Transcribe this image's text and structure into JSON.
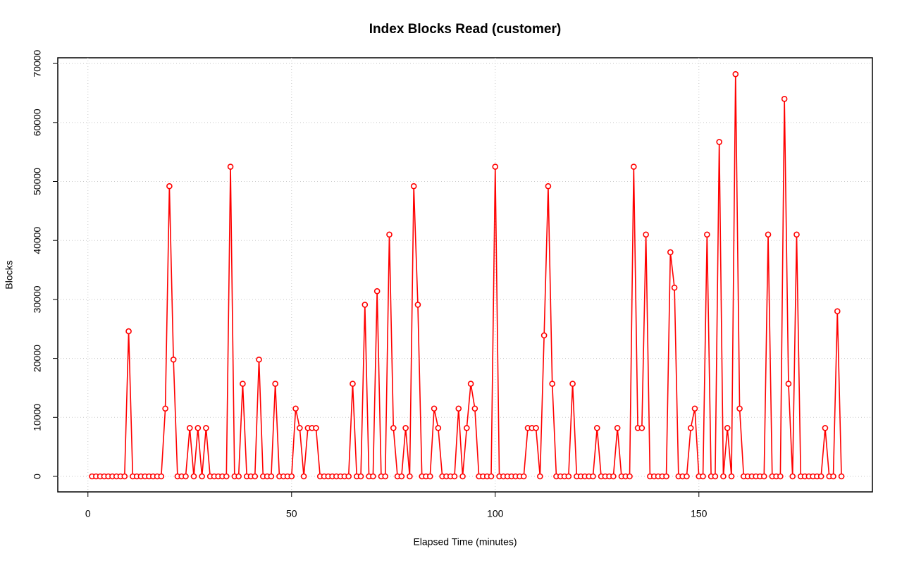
{
  "chart_data": {
    "type": "line",
    "title": "Index Blocks Read (customer)",
    "x_label": "Elapsed Time (minutes)",
    "y_label": "Blocks",
    "x": [
      1,
      2,
      3,
      4,
      5,
      6,
      7,
      8,
      9,
      10,
      11,
      12,
      13,
      14,
      15,
      16,
      17,
      18,
      19,
      20,
      21,
      22,
      23,
      24,
      25,
      26,
      27,
      28,
      29,
      30,
      31,
      32,
      33,
      34,
      35,
      36,
      37,
      38,
      39,
      40,
      41,
      42,
      43,
      44,
      45,
      46,
      47,
      48,
      49,
      50,
      51,
      52,
      53,
      54,
      55,
      56,
      57,
      58,
      59,
      60,
      61,
      62,
      63,
      64,
      65,
      66,
      67,
      68,
      69,
      70,
      71,
      72,
      73,
      74,
      75,
      76,
      77,
      78,
      79,
      80,
      81,
      82,
      83,
      84,
      85,
      86,
      87,
      88,
      89,
      90,
      91,
      92,
      93,
      94,
      95,
      96,
      97,
      98,
      99,
      100,
      101,
      102,
      103,
      104,
      105,
      106,
      107,
      108,
      109,
      110,
      111,
      112,
      113,
      114,
      115,
      116,
      117,
      118,
      119,
      120,
      121,
      122,
      123,
      124,
      125,
      126,
      127,
      128,
      129,
      130,
      131,
      132,
      133,
      134,
      135,
      136,
      137,
      138,
      139,
      140,
      141,
      142,
      143,
      144,
      145,
      146,
      147,
      148,
      149,
      150,
      151,
      152,
      153,
      154,
      155,
      156,
      157,
      158,
      159,
      160,
      161,
      162,
      163,
      164,
      165,
      166,
      167,
      168,
      169,
      170,
      171,
      172,
      173,
      174,
      175,
      176,
      177,
      178,
      179,
      180,
      181,
      182,
      183,
      184,
      185
    ],
    "series": [
      {
        "color": "#ff0000",
        "values": [
          0,
          0,
          0,
          0,
          0,
          0,
          0,
          0,
          0,
          24600,
          0,
          0,
          0,
          0,
          0,
          0,
          0,
          0,
          11500,
          49200,
          19800,
          0,
          0,
          0,
          8200,
          0,
          8200,
          0,
          8200,
          0,
          0,
          0,
          0,
          0,
          52500,
          0,
          0,
          15700,
          0,
          0,
          0,
          19800,
          0,
          0,
          0,
          15700,
          0,
          0,
          0,
          0,
          11500,
          8200,
          0,
          8200,
          8200,
          8200,
          0,
          0,
          0,
          0,
          0,
          0,
          0,
          0,
          15700,
          0,
          0,
          29100,
          0,
          0,
          31400,
          0,
          0,
          41000,
          8200,
          0,
          0,
          8200,
          0,
          49200,
          29100,
          0,
          0,
          0,
          11500,
          8200,
          0,
          0,
          0,
          0,
          11500,
          0,
          8200,
          15700,
          11500,
          0,
          0,
          0,
          0,
          52500,
          0,
          0,
          0,
          0,
          0,
          0,
          0,
          8200,
          8200,
          8200,
          0,
          23900,
          49200,
          15700,
          0,
          0,
          0,
          0,
          15700,
          0,
          0,
          0,
          0,
          0,
          8200,
          0,
          0,
          0,
          0,
          8200,
          0,
          0,
          0,
          52500,
          8200,
          8200,
          41000,
          0,
          0,
          0,
          0,
          0,
          38000,
          32000,
          0,
          0,
          0,
          8200,
          11500,
          0,
          0,
          41000,
          0,
          0,
          56700,
          0,
          8200,
          0,
          68200,
          11500,
          0,
          0,
          0,
          0,
          0,
          0,
          41000,
          0,
          0,
          0,
          64000,
          15700,
          0,
          41000,
          0,
          0,
          0,
          0,
          0,
          0,
          8200,
          0,
          0,
          28000,
          0
        ]
      }
    ],
    "xlim": [
      -7.4,
      192.6
    ],
    "ylim": [
      -2630,
      70970
    ],
    "xticks": [
      0,
      50,
      100,
      150
    ],
    "yticks": [
      0,
      10000,
      20000,
      30000,
      40000,
      50000,
      60000,
      70000
    ],
    "grid": true
  }
}
